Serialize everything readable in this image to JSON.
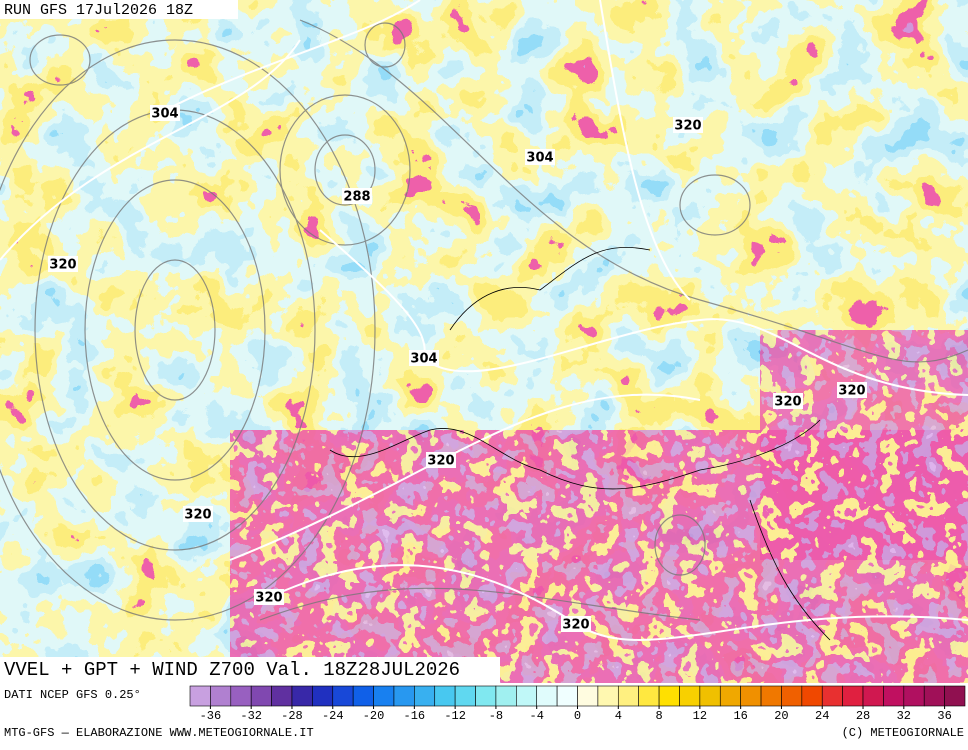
{
  "header": {
    "run": "RUN GFS 17Jul2026 18Z"
  },
  "map": {
    "contour_labels": [
      304,
      320,
      304,
      288,
      320,
      304,
      320,
      320,
      320,
      320,
      320,
      320
    ]
  },
  "title": "VVEL + GPT + WIND Z700 Val. 18Z28JUL2026",
  "source": "DATI NCEP GFS 0.25°",
  "colorbar": {
    "lim": [
      -38,
      38
    ],
    "ticks": [
      -36,
      -32,
      -28,
      -24,
      -20,
      -16,
      -12,
      -8,
      -4,
      0,
      4,
      8,
      12,
      16,
      20,
      24,
      28,
      32,
      36
    ],
    "colors": [
      "#c8a0e0",
      "#b080d0",
      "#9860c0",
      "#8048b0",
      "#6030a0",
      "#3828a8",
      "#2030c0",
      "#1848d8",
      "#1060e8",
      "#1880f0",
      "#2898f0",
      "#38b0f0",
      "#48c8f0",
      "#60d8f0",
      "#80e8f0",
      "#a0f0f0",
      "#c0f8f8",
      "#e0fcfc",
      "#f0ffff",
      "#fffce0",
      "#fff8b0",
      "#fff080",
      "#ffe840",
      "#ffe000",
      "#f8d000",
      "#f0c000",
      "#f0a800",
      "#f09000",
      "#f07800",
      "#f06000",
      "#f04800",
      "#e83030",
      "#e02040",
      "#d01850",
      "#c01060",
      "#b01060",
      "#a01058",
      "#901050"
    ]
  },
  "footer": {
    "left": "MTG-GFS — ELABORAZIONE WWW.METEOGIORNALE.IT",
    "right": "(C) METEOGIORNALE"
  }
}
